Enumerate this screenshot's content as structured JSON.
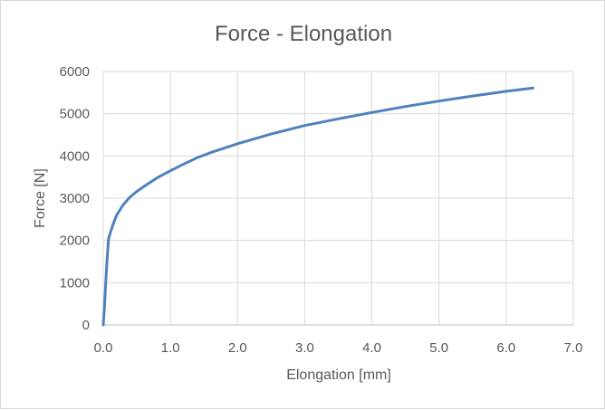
{
  "chart_data": {
    "type": "line",
    "title": "Force - Elongation",
    "xlabel": "Elongation [mm]",
    "ylabel": "Force [N]",
    "xlim": [
      0,
      7
    ],
    "ylim": [
      0,
      6000
    ],
    "x_ticks": [
      0,
      1,
      2,
      3,
      4,
      5,
      6,
      7
    ],
    "y_ticks": [
      0,
      1000,
      2000,
      3000,
      4000,
      5000,
      6000
    ],
    "x_tick_labels": [
      "0.0",
      "1.0",
      "2.0",
      "3.0",
      "4.0",
      "5.0",
      "6.0",
      "7.0"
    ],
    "y_tick_labels": [
      "0",
      "1000",
      "2000",
      "3000",
      "4000",
      "5000",
      "6000"
    ],
    "grid": true,
    "legend": "none",
    "series_color": "#4f81bd",
    "grid_color": "#d9d9d9",
    "series": [
      {
        "x": [
          0.0,
          0.02,
          0.04,
          0.06,
          0.08,
          0.1,
          0.15,
          0.2,
          0.3,
          0.4,
          0.5,
          0.6,
          0.8,
          1.0,
          1.2,
          1.4,
          1.6,
          2.0,
          2.5,
          3.0,
          3.5,
          4.0,
          4.5,
          5.0,
          5.5,
          6.0,
          6.4
        ],
        "y": [
          0,
          500,
          1100,
          1600,
          2050,
          2150,
          2400,
          2600,
          2850,
          3030,
          3160,
          3270,
          3480,
          3650,
          3810,
          3960,
          4080,
          4290,
          4520,
          4720,
          4880,
          5030,
          5170,
          5300,
          5420,
          5530,
          5610
        ]
      }
    ]
  }
}
